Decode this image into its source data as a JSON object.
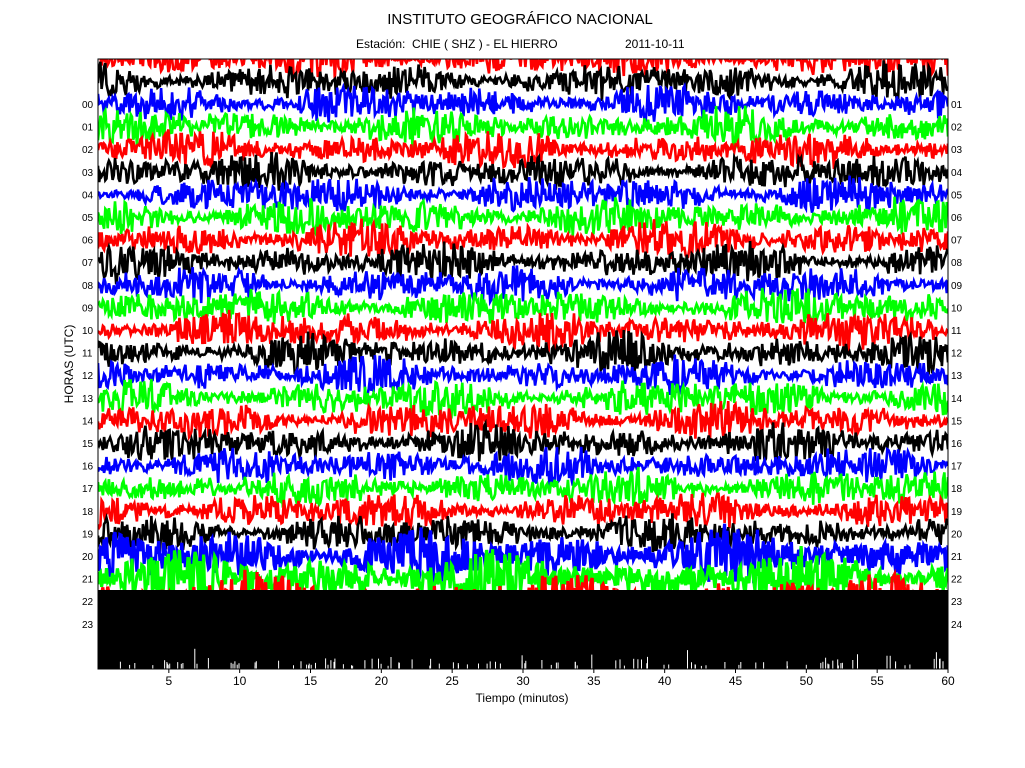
{
  "chart_data": {
    "type": "line",
    "title": "INSTITUTO GEOGRÁFICO NACIONAL",
    "subtitle": "Estación:  CHIE ( SHZ ) - EL HIERRO",
    "date": "2011-10-11",
    "xlabel": "Tiempo (minutos)",
    "ylabel": "HORAS (UTC)",
    "xlim": [
      0,
      60
    ],
    "x_ticks": [
      "5",
      "10",
      "15",
      "20",
      "25",
      "30",
      "35",
      "40",
      "45",
      "50",
      "55",
      "60"
    ],
    "left_hour_labels": [
      "00",
      "01",
      "02",
      "03",
      "04",
      "05",
      "06",
      "07",
      "08",
      "09",
      "10",
      "11",
      "12",
      "13",
      "14",
      "15",
      "16",
      "17",
      "18",
      "19",
      "20",
      "21",
      "22",
      "23"
    ],
    "right_hour_labels": [
      "01",
      "02",
      "03",
      "04",
      "05",
      "06",
      "07",
      "08",
      "09",
      "10",
      "11",
      "12",
      "13",
      "14",
      "15",
      "16",
      "17",
      "18",
      "19",
      "20",
      "21",
      "22",
      "23",
      "24"
    ],
    "trace_colors": [
      "#0000ff",
      "#00ff00",
      "#ff0000",
      "#000000"
    ],
    "grid": false,
    "legend": "none"
  }
}
